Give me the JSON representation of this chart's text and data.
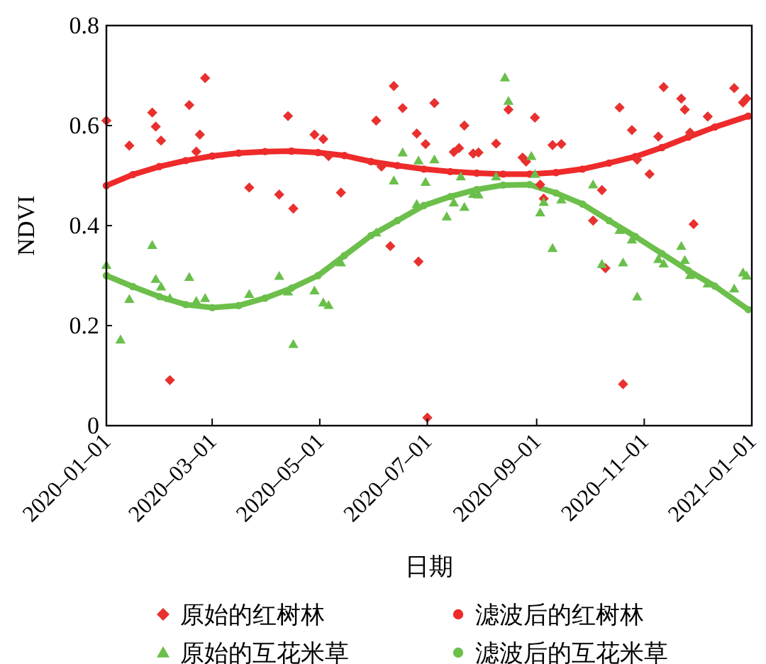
{
  "chart_data": {
    "type": "scatter",
    "xlabel": "日期",
    "ylabel": "NDVI",
    "xlim": [
      "2020-01-01",
      "2021-01-01"
    ],
    "ylim": [
      0,
      0.8
    ],
    "yticks": [
      0,
      0.2,
      0.4,
      0.6,
      0.8
    ],
    "xticks": [
      {
        "value": "2020-01-01",
        "label": "2020–01–01"
      },
      {
        "value": "2020-03-01",
        "label": "2020–03–01"
      },
      {
        "value": "2020-05-01",
        "label": "2020–05–01"
      },
      {
        "value": "2020-07-01",
        "label": "2020–07–01"
      },
      {
        "value": "2020-09-01",
        "label": "2020–09–01"
      },
      {
        "value": "2020-11-01",
        "label": "2020–11–01"
      },
      {
        "value": "2021-01-01",
        "label": "2021–01–01"
      }
    ],
    "grid": false,
    "legend": "bottom",
    "series": [
      {
        "name": "原始的红树林",
        "marker": "diamond",
        "color": "#e8312f",
        "x": [
          "2020-01-01",
          "2020-01-14",
          "2020-01-27",
          "2020-01-29",
          "2020-02-01",
          "2020-02-06",
          "2020-02-17",
          "2020-02-21",
          "2020-02-23",
          "2020-02-26",
          "2020-03-22",
          "2020-04-08",
          "2020-04-13",
          "2020-04-16",
          "2020-04-28",
          "2020-05-03",
          "2020-05-06",
          "2020-05-13",
          "2020-06-02",
          "2020-06-05",
          "2020-06-10",
          "2020-06-12",
          "2020-06-17",
          "2020-06-25",
          "2020-06-26",
          "2020-06-30",
          "2020-07-01",
          "2020-07-05",
          "2020-07-16",
          "2020-07-19",
          "2020-07-22",
          "2020-07-27",
          "2020-07-30",
          "2020-08-09",
          "2020-08-16",
          "2020-08-24",
          "2020-08-26",
          "2020-08-31",
          "2020-09-03",
          "2020-09-05",
          "2020-09-10",
          "2020-09-15",
          "2020-10-03",
          "2020-10-08",
          "2020-10-10",
          "2020-10-18",
          "2020-10-20",
          "2020-10-25",
          "2020-10-28",
          "2020-11-04",
          "2020-11-09",
          "2020-11-12",
          "2020-11-22",
          "2020-11-24",
          "2020-11-27",
          "2020-11-29",
          "2020-12-07",
          "2020-12-22",
          "2020-12-27",
          "2020-12-29"
        ],
        "values": [
          0.61,
          0.56,
          0.626,
          0.598,
          0.57,
          0.091,
          0.641,
          0.548,
          0.582,
          0.695,
          0.476,
          0.462,
          0.619,
          0.434,
          0.582,
          0.573,
          0.539,
          0.466,
          0.61,
          0.518,
          0.359,
          0.679,
          0.635,
          0.584,
          0.328,
          0.563,
          0.016,
          0.645,
          0.547,
          0.555,
          0.6,
          0.544,
          0.546,
          0.564,
          0.632,
          0.536,
          0.528,
          0.616,
          0.482,
          0.454,
          0.561,
          0.563,
          0.41,
          0.471,
          0.315,
          0.636,
          0.083,
          0.591,
          0.532,
          0.503,
          0.578,
          0.677,
          0.654,
          0.632,
          0.586,
          0.403,
          0.618,
          0.675,
          0.646,
          0.654
        ]
      },
      {
        "name": "滤波后的红树林",
        "type": "line",
        "marker": "circle",
        "color": "#ee2a2a",
        "x": [
          "2020-01-01",
          "2020-01-16",
          "2020-01-31",
          "2020-02-15",
          "2020-03-01",
          "2020-03-16",
          "2020-03-31",
          "2020-04-15",
          "2020-04-30",
          "2020-05-15",
          "2020-05-30",
          "2020-06-14",
          "2020-06-29",
          "2020-07-14",
          "2020-07-29",
          "2020-08-13",
          "2020-08-28",
          "2020-09-12",
          "2020-09-27",
          "2020-10-12",
          "2020-10-27",
          "2020-11-11",
          "2020-11-26",
          "2020-12-11",
          "2020-12-30"
        ],
        "values": [
          0.48,
          0.502,
          0.518,
          0.53,
          0.539,
          0.545,
          0.548,
          0.549,
          0.546,
          0.54,
          0.528,
          0.52,
          0.513,
          0.508,
          0.505,
          0.503,
          0.503,
          0.506,
          0.513,
          0.525,
          0.538,
          0.556,
          0.577,
          0.597,
          0.619
        ]
      },
      {
        "name": "原始的互花米草",
        "marker": "triangle",
        "color": "#6abf4b",
        "x": [
          "2020-01-01",
          "2020-01-09",
          "2020-01-14",
          "2020-01-27",
          "2020-01-29",
          "2020-02-01",
          "2020-02-06",
          "2020-02-17",
          "2020-02-21",
          "2020-02-26",
          "2020-03-22",
          "2020-04-08",
          "2020-04-13",
          "2020-04-16",
          "2020-04-28",
          "2020-05-03",
          "2020-05-06",
          "2020-05-13",
          "2020-06-02",
          "2020-06-12",
          "2020-06-17",
          "2020-06-25",
          "2020-06-26",
          "2020-06-30",
          "2020-07-05",
          "2020-07-12",
          "2020-07-16",
          "2020-07-20",
          "2020-07-22",
          "2020-07-27",
          "2020-07-30",
          "2020-08-09",
          "2020-08-14",
          "2020-08-16",
          "2020-08-29",
          "2020-08-31",
          "2020-09-03",
          "2020-09-05",
          "2020-09-10",
          "2020-09-15",
          "2020-10-03",
          "2020-10-08",
          "2020-10-18",
          "2020-10-20",
          "2020-10-25",
          "2020-10-28",
          "2020-11-09",
          "2020-11-12",
          "2020-11-22",
          "2020-11-24",
          "2020-11-27",
          "2020-12-07",
          "2020-12-22",
          "2020-12-27",
          "2020-12-29"
        ],
        "values": [
          0.321,
          0.172,
          0.253,
          0.361,
          0.293,
          0.278,
          0.255,
          0.297,
          0.249,
          0.255,
          0.263,
          0.299,
          0.268,
          0.163,
          0.27,
          0.246,
          0.241,
          0.326,
          0.386,
          0.49,
          0.546,
          0.443,
          0.53,
          0.487,
          0.532,
          0.418,
          0.446,
          0.498,
          0.437,
          0.463,
          0.462,
          0.498,
          0.696,
          0.649,
          0.539,
          0.503,
          0.426,
          0.447,
          0.355,
          0.452,
          0.482,
          0.323,
          0.391,
          0.326,
          0.372,
          0.258,
          0.333,
          0.324,
          0.359,
          0.331,
          0.301,
          0.284,
          0.274,
          0.306,
          0.3
        ]
      },
      {
        "name": "滤波后的互花米草",
        "type": "line",
        "marker": "circle",
        "color": "#6cbf4a",
        "x": [
          "2020-01-01",
          "2020-01-16",
          "2020-01-31",
          "2020-02-15",
          "2020-03-01",
          "2020-03-16",
          "2020-03-31",
          "2020-04-15",
          "2020-04-30",
          "2020-05-15",
          "2020-05-30",
          "2020-06-14",
          "2020-06-29",
          "2020-07-14",
          "2020-07-29",
          "2020-08-13",
          "2020-08-28",
          "2020-09-12",
          "2020-09-27",
          "2020-10-12",
          "2020-10-27",
          "2020-11-11",
          "2020-11-26",
          "2020-12-11",
          "2020-12-30"
        ],
        "values": [
          0.3,
          0.278,
          0.258,
          0.242,
          0.236,
          0.24,
          0.255,
          0.275,
          0.3,
          0.34,
          0.38,
          0.41,
          0.44,
          0.458,
          0.472,
          0.481,
          0.482,
          0.465,
          0.443,
          0.41,
          0.378,
          0.344,
          0.31,
          0.279,
          0.232
        ]
      }
    ]
  }
}
